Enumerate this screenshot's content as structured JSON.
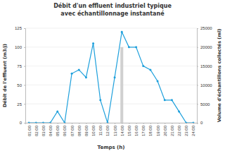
{
  "chart_data": {
    "type": "line",
    "title": "Débit d'un effluent industriel typique",
    "subtitle": "avec échantillonnage instantané",
    "x_label": "Temps (h)",
    "y_label": "Débit de l'effluent (m3/j)",
    "y2_label": "Volume d'échantillons collectés (ml)",
    "categories": [
      "01:00",
      "02:00",
      "03:00",
      "04:00",
      "05:00",
      "06:00",
      "07:00",
      "08:00",
      "09:00",
      "10:00",
      "11:00",
      "12:00",
      "13:00",
      "14:00",
      "15:00",
      "16:00",
      "17:00",
      "18:00",
      "19:00",
      "20:00",
      "21:00",
      "22:00",
      "23:00",
      "24:00"
    ],
    "series": [
      {
        "type": "line",
        "color": "#1ea0dc",
        "marker": "circle",
        "values": [
          0,
          0,
          0,
          0,
          15,
          0,
          65,
          70,
          60,
          105,
          30,
          0,
          60,
          120,
          100,
          100,
          75,
          70,
          55,
          30,
          30,
          15,
          0,
          0
        ]
      },
      {
        "type": "bar",
        "axis": "y2",
        "color": "#d0d0d0",
        "values": [
          null,
          null,
          null,
          null,
          null,
          null,
          null,
          null,
          null,
          null,
          null,
          null,
          null,
          20000,
          null,
          null,
          null,
          null,
          null,
          null,
          null,
          null,
          null,
          null
        ]
      }
    ],
    "ylim": [
      0,
      125
    ],
    "yticks": [
      0,
      25,
      50,
      75,
      100,
      125
    ],
    "y2lim": [
      0,
      25000
    ],
    "y2ticks": [
      0,
      5000,
      10000,
      15000,
      20000,
      25000
    ],
    "grid": true
  }
}
